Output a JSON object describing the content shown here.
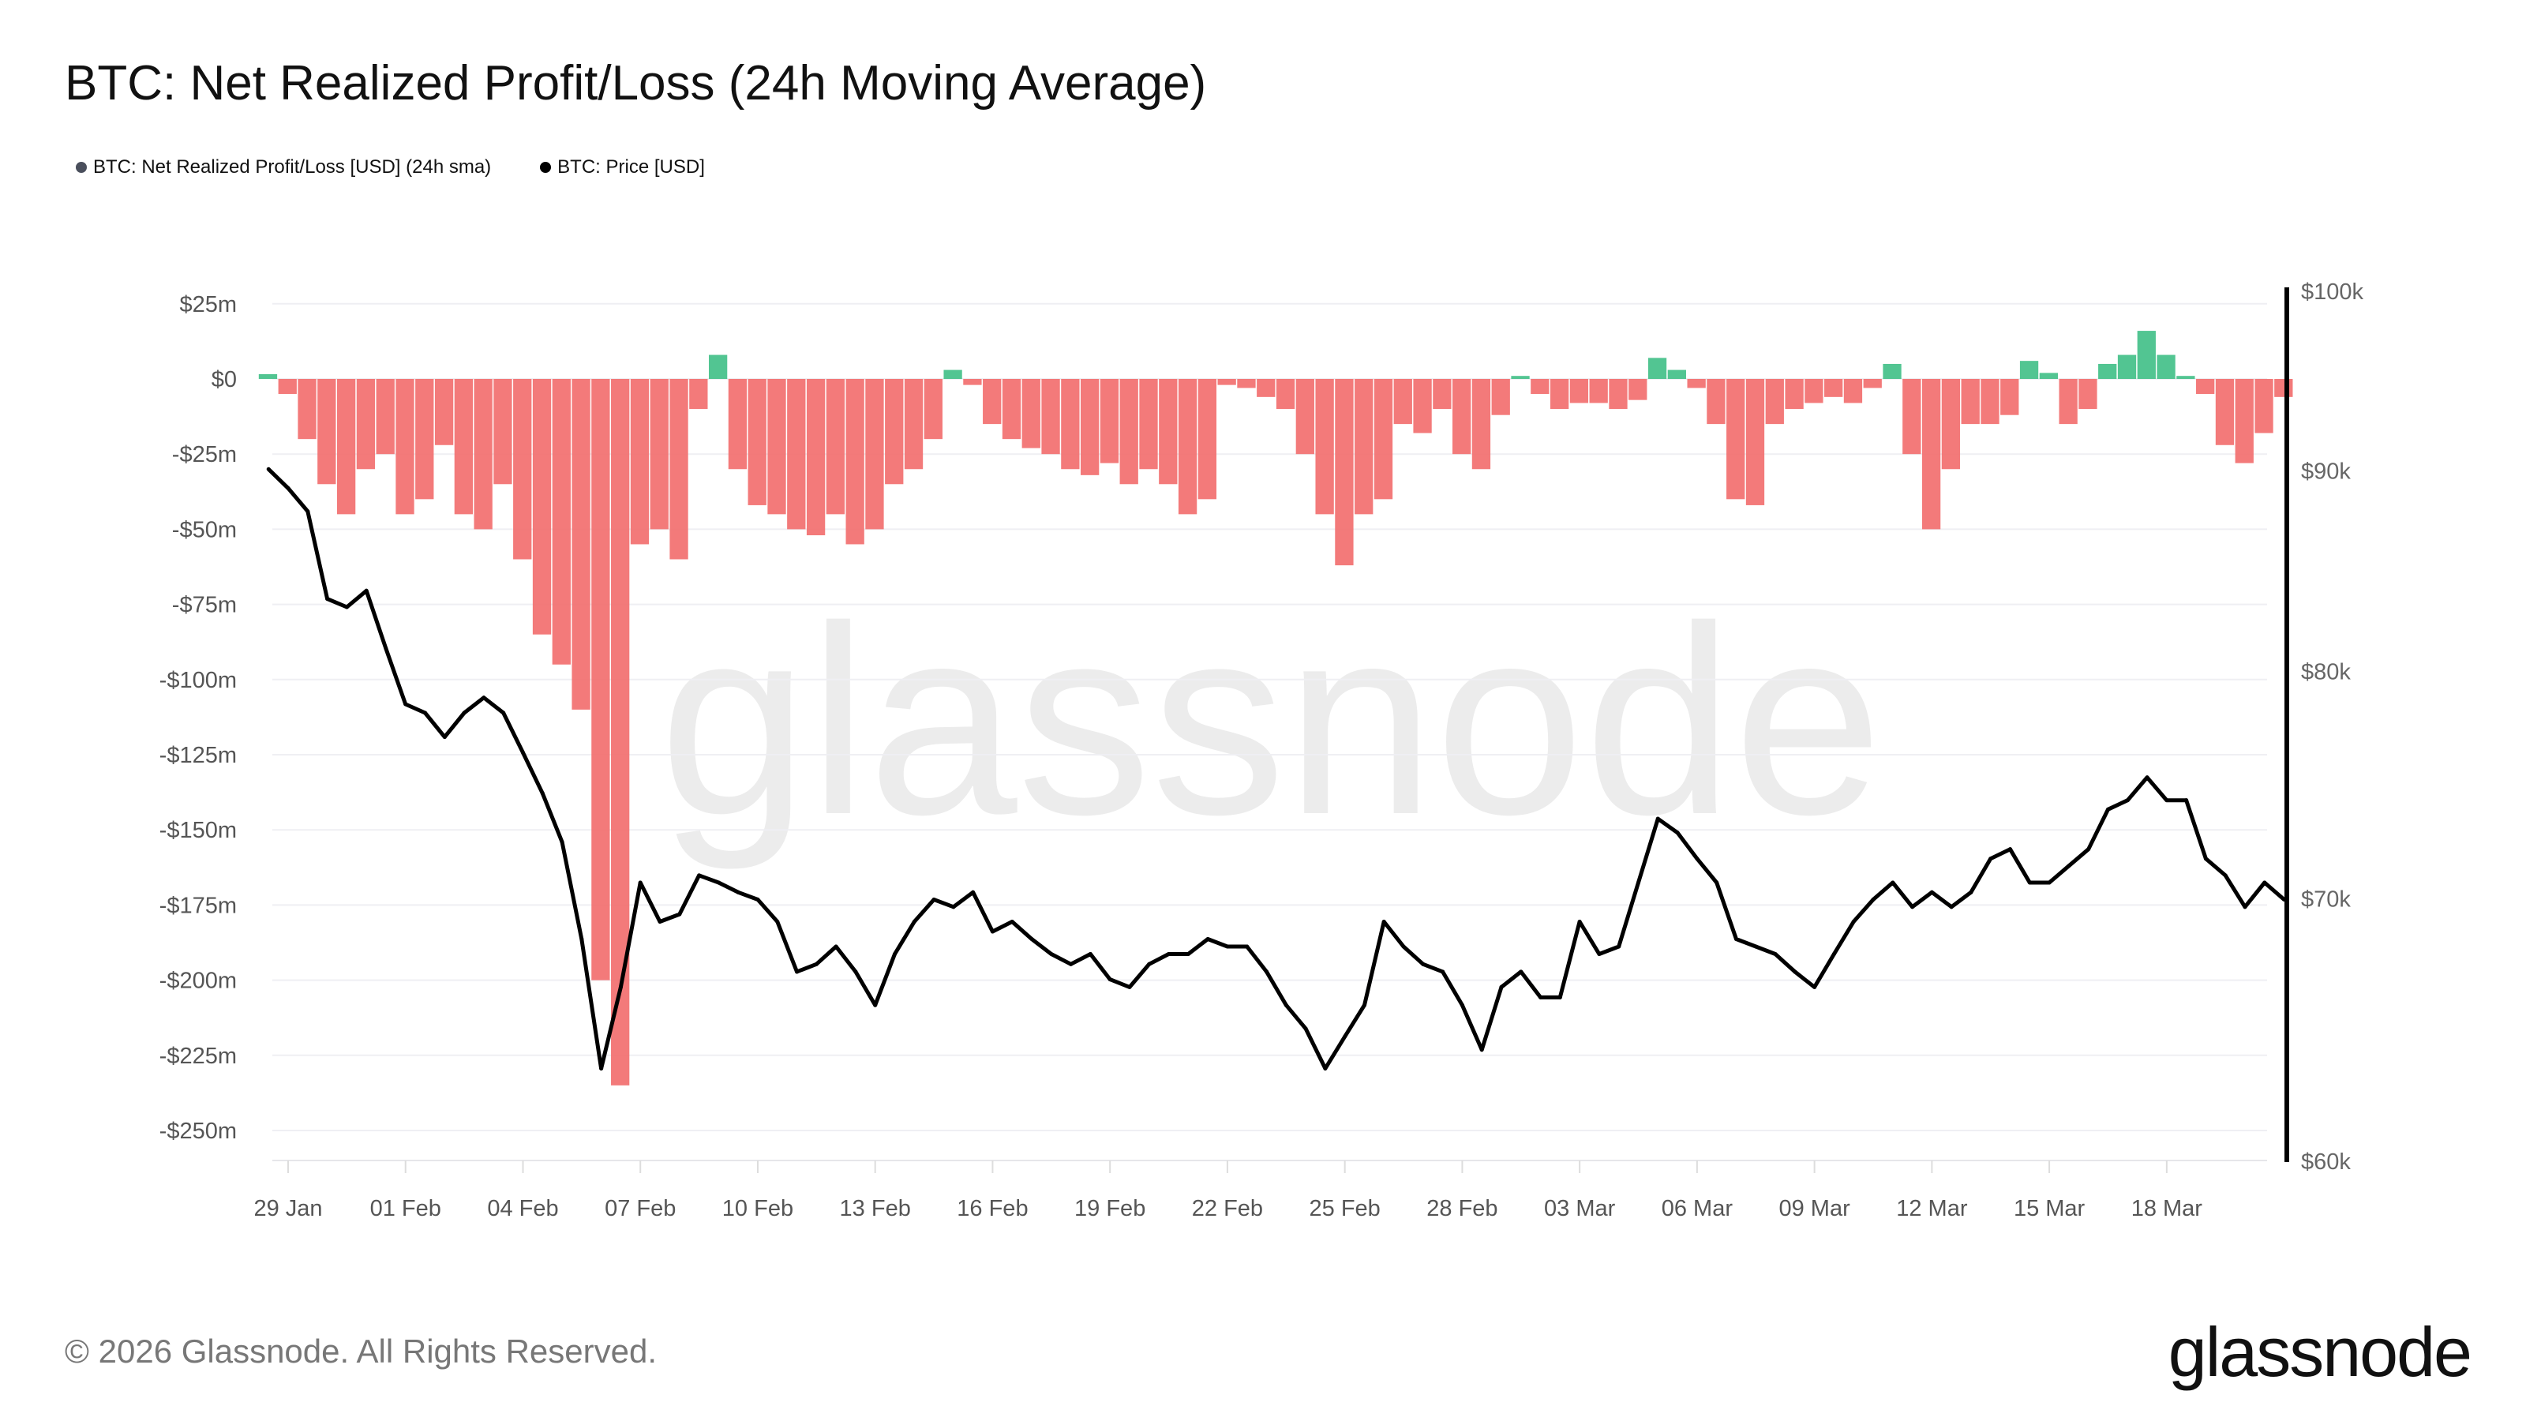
{
  "title": "BTC: Net Realized Profit/Loss (24h Moving Average)",
  "legend": [
    {
      "label": "BTC: Net Realized Profit/Loss [USD] (24h sma)",
      "color": "#4a4f5c"
    },
    {
      "label": "BTC: Price [USD]",
      "color": "#000000"
    }
  ],
  "footer": "© 2026 Glassnode. All Rights Reserved.",
  "logo": "glassnode",
  "watermark": "glassnode",
  "chart_data": {
    "type": "bar+line",
    "title": "BTC: Net Realized Profit/Loss (24h Moving Average)",
    "x_ticks": [
      "29 Jan",
      "01 Feb",
      "04 Feb",
      "07 Feb",
      "10 Feb",
      "13 Feb",
      "16 Feb",
      "19 Feb",
      "22 Feb",
      "25 Feb",
      "28 Feb",
      "03 Mar",
      "06 Mar",
      "09 Mar",
      "12 Mar",
      "15 Mar",
      "18 Mar"
    ],
    "x_tick_dates": [
      "2026-01-29",
      "2026-02-01",
      "2026-02-04",
      "2026-02-07",
      "2026-02-10",
      "2026-02-13",
      "2026-02-16",
      "2026-02-19",
      "2026-02-22",
      "2026-02-25",
      "2026-02-28",
      "2026-03-03",
      "2026-03-06",
      "2026-03-09",
      "2026-03-12",
      "2026-03-15",
      "2026-03-18"
    ],
    "y_left": {
      "ticks": [
        "$25m",
        "$0",
        "-$25m",
        "-$50m",
        "-$75m",
        "-$100m",
        "-$125m",
        "-$150m",
        "-$175m",
        "-$200m",
        "-$225m",
        "-$250m"
      ],
      "tick_values": [
        25,
        0,
        -25,
        -50,
        -75,
        -100,
        -125,
        -150,
        -175,
        -200,
        -225,
        -250
      ],
      "range": [
        -260,
        25
      ],
      "unit": "USD millions"
    },
    "y_right": {
      "ticks": [
        "$100k",
        "$90k",
        "$80k",
        "$70k",
        "$60k"
      ],
      "tick_values": [
        100,
        90,
        80,
        70,
        60
      ],
      "range": [
        60,
        100
      ],
      "scale": "log",
      "unit": "USD thousands"
    },
    "grid": true,
    "legend_position": "top-left",
    "colors": {
      "positive": "#3fbf86",
      "negative": "#f26b6b",
      "price": "#000000"
    },
    "x": [
      "2026-01-28T12",
      "2026-01-29T00",
      "2026-01-29T12",
      "2026-01-30T00",
      "2026-01-30T12",
      "2026-01-31T00",
      "2026-01-31T12",
      "2026-02-01T00",
      "2026-02-01T12",
      "2026-02-02T00",
      "2026-02-02T12",
      "2026-02-03T00",
      "2026-02-03T12",
      "2026-02-04T00",
      "2026-02-04T12",
      "2026-02-05T00",
      "2026-02-05T12",
      "2026-02-06T00",
      "2026-02-06T12",
      "2026-02-07T00",
      "2026-02-07T12",
      "2026-02-08T00",
      "2026-02-08T12",
      "2026-02-09T00",
      "2026-02-09T12",
      "2026-02-10T00",
      "2026-02-10T12",
      "2026-02-11T00",
      "2026-02-11T12",
      "2026-02-12T00",
      "2026-02-12T12",
      "2026-02-13T00",
      "2026-02-13T12",
      "2026-02-14T00",
      "2026-02-14T12",
      "2026-02-15T00",
      "2026-02-15T12",
      "2026-02-16T00",
      "2026-02-16T12",
      "2026-02-17T00",
      "2026-02-17T12",
      "2026-02-18T00",
      "2026-02-18T12",
      "2026-02-19T00",
      "2026-02-19T12",
      "2026-02-20T00",
      "2026-02-20T12",
      "2026-02-21T00",
      "2026-02-21T12",
      "2026-02-22T00",
      "2026-02-22T12",
      "2026-02-23T00",
      "2026-02-23T12",
      "2026-02-24T00",
      "2026-02-24T12",
      "2026-02-25T00",
      "2026-02-25T12",
      "2026-02-26T00",
      "2026-02-26T12",
      "2026-02-27T00",
      "2026-02-27T12",
      "2026-02-28T00",
      "2026-02-28T12",
      "2026-03-01T00",
      "2026-03-01T12",
      "2026-03-02T00",
      "2026-03-02T12",
      "2026-03-03T00",
      "2026-03-03T12",
      "2026-03-04T00",
      "2026-03-04T12",
      "2026-03-05T00",
      "2026-03-05T12",
      "2026-03-06T00",
      "2026-03-06T12",
      "2026-03-07T00",
      "2026-03-07T12",
      "2026-03-08T00",
      "2026-03-08T12",
      "2026-03-09T00",
      "2026-03-09T12",
      "2026-03-10T00",
      "2026-03-10T12",
      "2026-03-11T00",
      "2026-03-11T12",
      "2026-03-12T00",
      "2026-03-12T12",
      "2026-03-13T00",
      "2026-03-13T12",
      "2026-03-14T00",
      "2026-03-14T12",
      "2026-03-15T00",
      "2026-03-15T12",
      "2026-03-16T00",
      "2026-03-16T12",
      "2026-03-17T00",
      "2026-03-17T12",
      "2026-03-18T00",
      "2026-03-18T12",
      "2026-03-19T00",
      "2026-03-19T12",
      "2026-03-20T00",
      "2026-03-20T12",
      "2026-03-21T00"
    ],
    "series": [
      {
        "name": "BTC: Net Realized Profit/Loss [USD] (24h sma)",
        "type": "bar",
        "unit": "USD millions",
        "values": [
          1.6,
          -5,
          -20,
          -35,
          -45,
          -30,
          -25,
          -45,
          -40,
          -22,
          -45,
          -50,
          -35,
          -60,
          -85,
          -95,
          -110,
          -200,
          -235,
          -55,
          -50,
          -60,
          -10,
          8,
          -30,
          -42,
          -45,
          -50,
          -52,
          -45,
          -55,
          -50,
          -35,
          -30,
          -20,
          3,
          -2,
          -15,
          -20,
          -23,
          -25,
          -30,
          -32,
          -28,
          -35,
          -30,
          -35,
          -45,
          -40,
          -2,
          -3,
          -6,
          -10,
          -25,
          -45,
          -62,
          -45,
          -40,
          -15,
          -18,
          -10,
          -25,
          -30,
          -12,
          1,
          -5,
          -10,
          -8,
          -8,
          -10,
          -7,
          7,
          3,
          -3,
          -15,
          -40,
          -42,
          -15,
          -10,
          -8,
          -6,
          -8,
          -3,
          5,
          -25,
          -50,
          -30,
          -15,
          -15,
          -12,
          6,
          2,
          -15,
          -10,
          5,
          8,
          16,
          8,
          1,
          -5,
          -22,
          -28,
          -18,
          -6
        ]
      },
      {
        "name": "BTC: Price [USD]",
        "type": "line",
        "unit": "USD thousands",
        "values": [
          90,
          89,
          87.8,
          83.4,
          83,
          83.8,
          81,
          78.4,
          78,
          76.9,
          78,
          78.7,
          78,
          76.2,
          74.4,
          72.3,
          68.3,
          63.3,
          66.4,
          70.6,
          69,
          69.3,
          70.9,
          70.6,
          70.2,
          69.9,
          69,
          67,
          67.3,
          68,
          67,
          65.7,
          67.7,
          69,
          69.9,
          69.6,
          70.2,
          68.6,
          69,
          68.3,
          67.7,
          67.3,
          67.7,
          66.7,
          66.4,
          67.3,
          67.7,
          67.7,
          68.3,
          68,
          68,
          67,
          65.7,
          64.8,
          63.3,
          64.5,
          65.7,
          69,
          68,
          67.3,
          67,
          65.7,
          64,
          66.4,
          67,
          66,
          66,
          69,
          67.7,
          68,
          70.6,
          73.3,
          72.7,
          71.6,
          70.6,
          68.3,
          68,
          67.7,
          67,
          66.4,
          67.7,
          69,
          69.9,
          70.6,
          69.6,
          70.2,
          69.6,
          70.2,
          71.6,
          72,
          70.6,
          70.6,
          71.3,
          72,
          73.7,
          74.1,
          75.1,
          74.1,
          74.1,
          71.6,
          70.9,
          69.6,
          70.6,
          69.9
        ]
      }
    ]
  }
}
